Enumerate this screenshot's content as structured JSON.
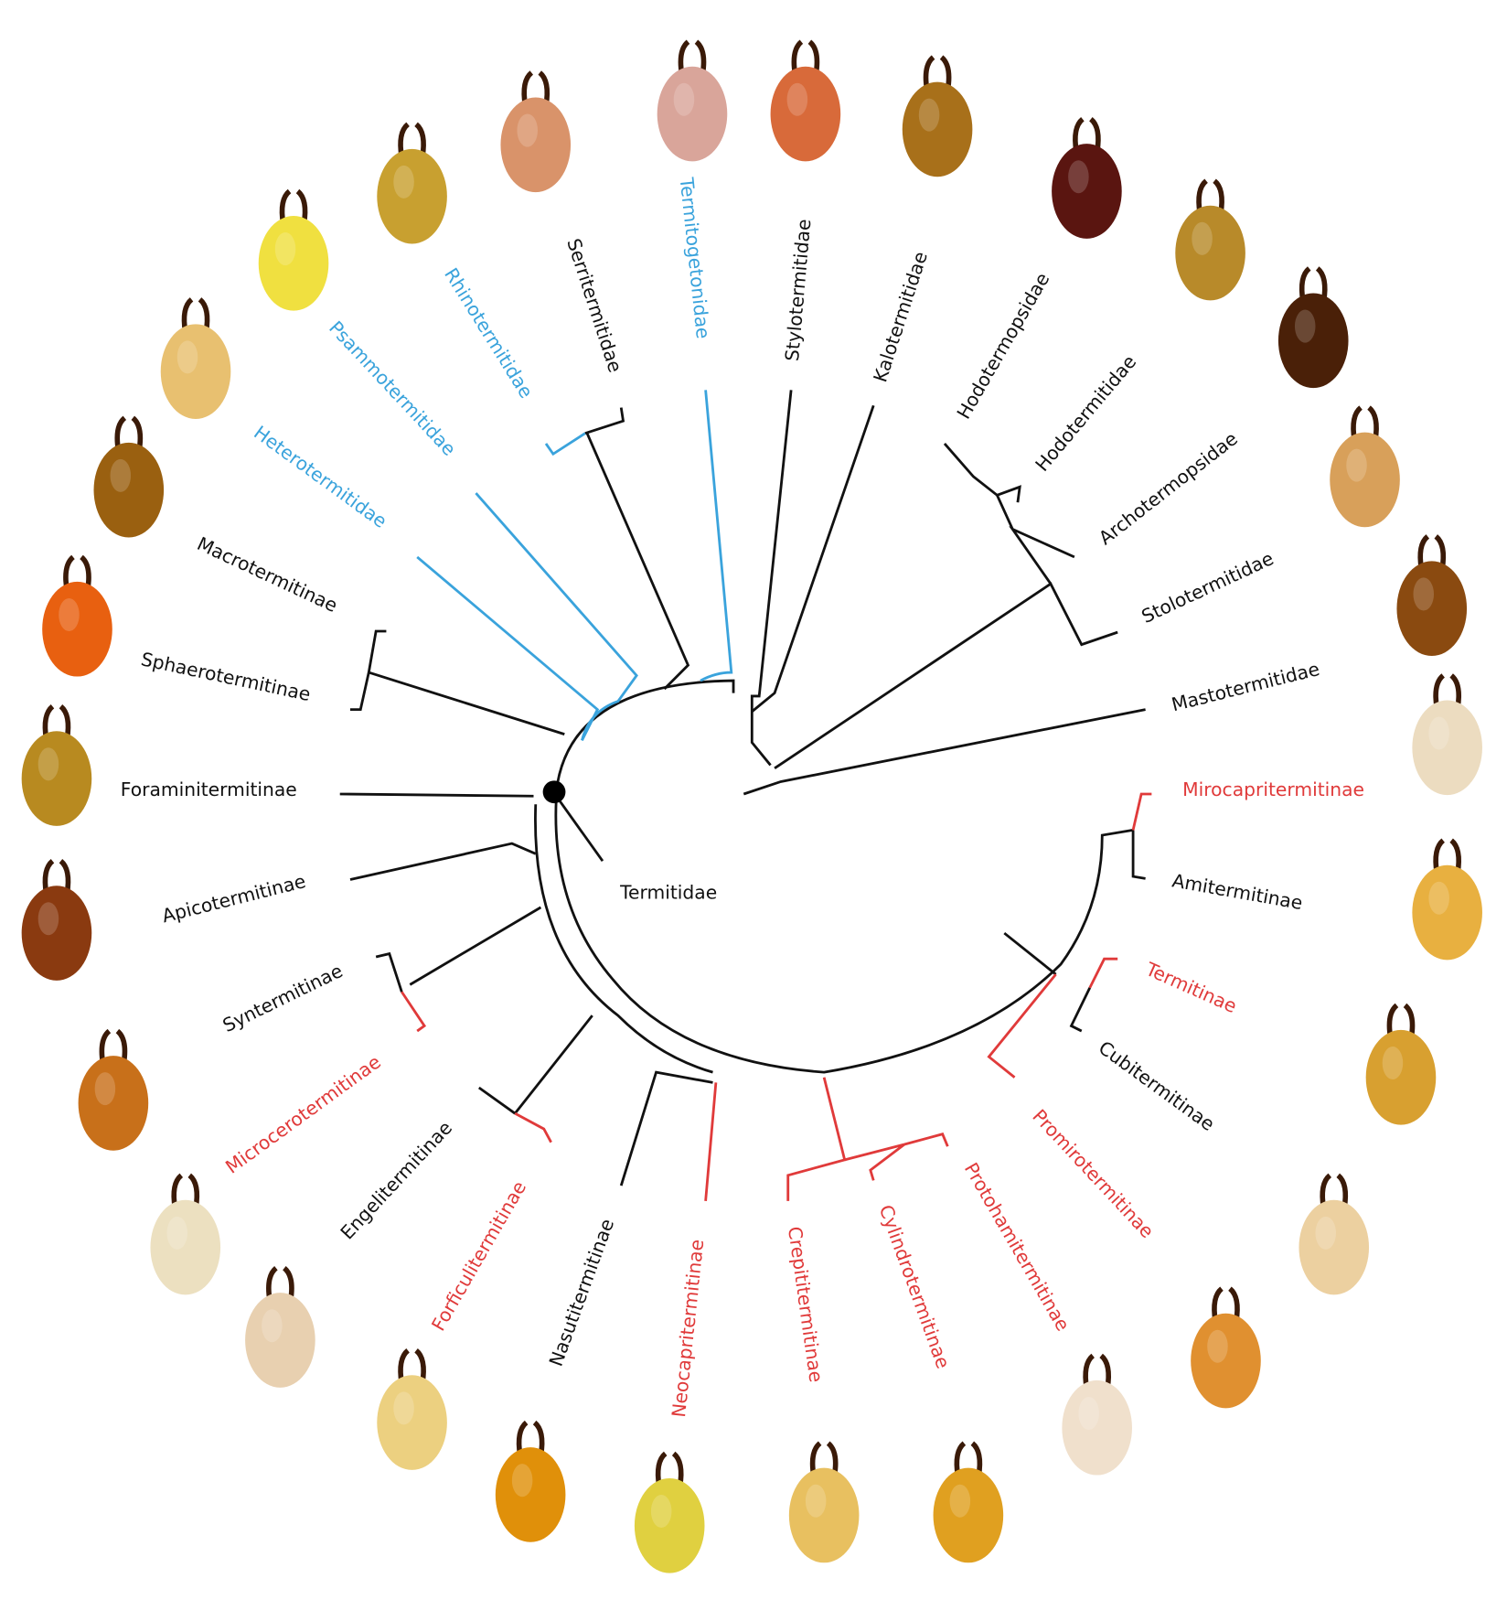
{
  "nodes": [
    {
      "text": "Serritermitidae",
      "color": "#111111"
    },
    {
      "text": "Termitogetonidae",
      "color": "#3aa3dc"
    },
    {
      "text": "Stylotermitidae",
      "color": "#111111"
    },
    {
      "text": "Kalotermitidae",
      "color": "#111111"
    },
    {
      "text": "Hodotermopsidae",
      "color": "#111111"
    },
    {
      "text": "Hodotermitidae",
      "color": "#111111"
    },
    {
      "text": "Archotermopsidae",
      "color": "#111111"
    },
    {
      "text": "Stolotermitidae",
      "color": "#111111"
    },
    {
      "text": "Mastotermitidae",
      "color": "#111111"
    },
    {
      "text": "Mirocapritermitinae",
      "color": "#e03a3a"
    },
    {
      "text": "Amitermitinae",
      "color": "#111111"
    },
    {
      "text": "Termitinae",
      "color": "#e03a3a"
    },
    {
      "text": "Cubitermitinae",
      "color": "#111111"
    },
    {
      "text": "Promirotermitinae",
      "color": "#e03a3a"
    },
    {
      "text": "Protohamitermitinae",
      "color": "#e03a3a"
    },
    {
      "text": "Cylindrotermitinae",
      "color": "#e03a3a"
    },
    {
      "text": "Crepititermitinae",
      "color": "#e03a3a"
    },
    {
      "text": "Neocapritermitinae",
      "color": "#e03a3a"
    },
    {
      "text": "Nasutitermitinae",
      "color": "#111111"
    },
    {
      "text": "Forficulitermitinae",
      "color": "#e03a3a"
    },
    {
      "text": "Engelitermitinae",
      "color": "#111111"
    },
    {
      "text": "Microcerotermitinae",
      "color": "#e03a3a"
    },
    {
      "text": "Syntermitinae",
      "color": "#111111"
    },
    {
      "text": "Apicotermitinae",
      "color": "#111111"
    },
    {
      "text": "Foraminitermitinae",
      "color": "#111111"
    },
    {
      "text": "Termitidae",
      "color": "#111111"
    },
    {
      "text": "Sphaerotermitinae",
      "color": "#111111"
    },
    {
      "text": "Macrotermitinae",
      "color": "#111111"
    },
    {
      "text": "Heterotermitidae",
      "color": "#3aa3dc"
    },
    {
      "text": "Psammotermitidae",
      "color": "#3aa3dc"
    },
    {
      "text": "Rhinotermitidae",
      "color": "#3aa3dc"
    }
  ]
}
